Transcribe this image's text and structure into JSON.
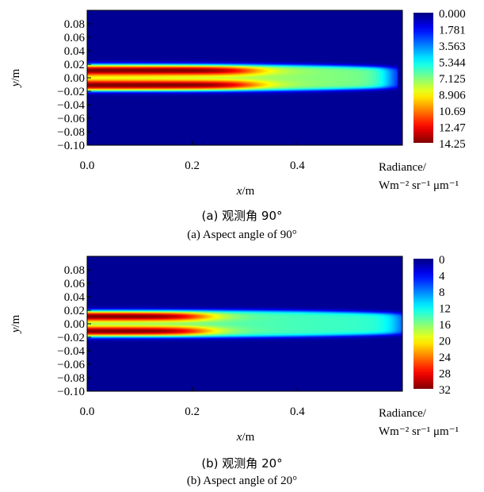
{
  "chart_data": [
    {
      "type": "heatmap",
      "caption_cn": "(a) 观测角 90°",
      "caption_en": "(a) Aspect angle of 90°",
      "xlabel_var": "x",
      "xlabel_unit": "/m",
      "ylabel_var": "y",
      "ylabel_unit": "/m",
      "xlim": [
        0.0,
        0.6
      ],
      "ylim": [
        -0.1,
        0.1
      ],
      "x_ticks": [
        "0.0",
        "0.2",
        "0.4"
      ],
      "x_tick_values": [
        0.0,
        0.2,
        0.4
      ],
      "y_ticks": [
        "0.08",
        "0.06",
        "0.04",
        "0.02",
        "0.00",
        "−0.02",
        "−0.04",
        "−0.06",
        "−0.08",
        "−0.10"
      ],
      "y_tick_values": [
        0.08,
        0.06,
        0.04,
        0.02,
        0.0,
        -0.02,
        -0.04,
        -0.06,
        -0.08,
        -0.1
      ],
      "colorbar_ticks": [
        "0.000",
        "1.781",
        "3.563",
        "5.344",
        "7.125",
        "8.906",
        "10.69",
        "12.47",
        "14.25"
      ],
      "colorbar_range": [
        0,
        14.25
      ],
      "colorbar_title": "Radiance/",
      "colorbar_unit": "Wm⁻² sr⁻¹ μm⁻¹",
      "plume": {
        "half_width": 0.02,
        "core_length": 0.31,
        "tail_length": 0.58,
        "peak_value": 14.25,
        "axis_value": 7.8,
        "two_lobes": true
      }
    },
    {
      "type": "heatmap",
      "caption_cn": "(b) 观测角 20°",
      "caption_en": "(b) Aspect angle of 20°",
      "xlabel_var": "x",
      "xlabel_unit": "/m",
      "ylabel_var": "y",
      "ylabel_unit": "/m",
      "xlim": [
        0.0,
        0.6
      ],
      "ylim": [
        -0.1,
        0.1
      ],
      "x_ticks": [
        "0.0",
        "0.2",
        "0.4"
      ],
      "x_tick_values": [
        0.0,
        0.2,
        0.4
      ],
      "y_ticks": [
        "0.08",
        "0.06",
        "0.04",
        "0.02",
        "0.00",
        "−0.02",
        "−0.04",
        "−0.06",
        "−0.08",
        "−0.10"
      ],
      "y_tick_values": [
        0.08,
        0.06,
        0.04,
        0.02,
        0.0,
        -0.02,
        -0.04,
        -0.06,
        -0.08,
        -0.1
      ],
      "colorbar_ticks": [
        "0",
        "4",
        "8",
        "12",
        "16",
        "20",
        "24",
        "28",
        "32"
      ],
      "colorbar_range": [
        0,
        32
      ],
      "colorbar_title": "Radiance/",
      "colorbar_unit": "Wm⁻² sr⁻¹ μm⁻¹",
      "plume": {
        "half_width": 0.02,
        "core_length": 0.22,
        "tail_length": 0.6,
        "peak_value": 32,
        "axis_value": 15,
        "two_lobes": true
      }
    }
  ]
}
